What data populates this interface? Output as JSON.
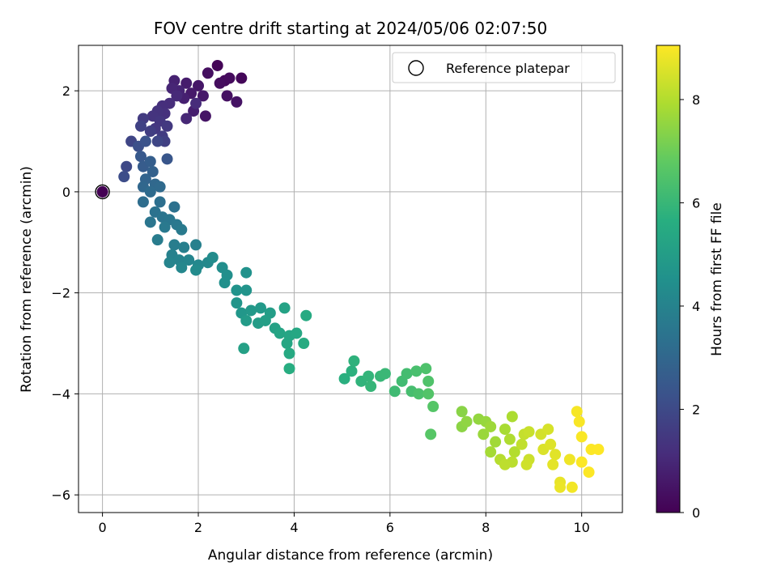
{
  "chart_data": {
    "type": "scatter",
    "title": "FOV centre drift starting at 2024/05/06 02:07:50",
    "xlabel": "Angular distance from reference (arcmin)",
    "ylabel": "Rotation from reference (arcmin)",
    "xlim": [
      -0.5,
      10.85
    ],
    "ylim": [
      -6.35,
      2.9
    ],
    "xticks": [
      "0",
      "2",
      "4",
      "6",
      "8",
      "10"
    ],
    "yticks": [
      "2",
      "0",
      "−2",
      "−4",
      "−6"
    ],
    "grid": true,
    "legend": {
      "placement": "top-right",
      "label": "Reference platepar"
    },
    "reference": {
      "x": 0,
      "y": 0
    },
    "colorbar": {
      "label": "Hours from first FF file",
      "range": [
        0,
        9.05
      ],
      "ticks": [
        "0",
        "2",
        "4",
        "6",
        "8"
      ],
      "colormap": "viridis"
    },
    "series": [
      {
        "points": [
          {
            "x": 2.4,
            "y": 2.5,
            "h": 0.1
          },
          {
            "x": 2.9,
            "y": 2.25,
            "h": 0.15
          },
          {
            "x": 2.55,
            "y": 2.2,
            "h": 0.2
          },
          {
            "x": 2.65,
            "y": 2.25,
            "h": 0.25
          },
          {
            "x": 2.45,
            "y": 2.15,
            "h": 0.3
          },
          {
            "x": 2.2,
            "y": 2.35,
            "h": 0.35
          },
          {
            "x": 2.6,
            "y": 1.9,
            "h": 0.4
          },
          {
            "x": 2.8,
            "y": 1.78,
            "h": 0.45
          },
          {
            "x": 2.15,
            "y": 1.5,
            "h": 0.5
          },
          {
            "x": 2.0,
            "y": 2.1,
            "h": 0.55
          },
          {
            "x": 2.1,
            "y": 1.9,
            "h": 0.6
          },
          {
            "x": 1.85,
            "y": 1.95,
            "h": 0.65
          },
          {
            "x": 1.75,
            "y": 2.15,
            "h": 0.7
          },
          {
            "x": 1.9,
            "y": 1.6,
            "h": 0.75
          },
          {
            "x": 1.7,
            "y": 1.85,
            "h": 0.8
          },
          {
            "x": 1.5,
            "y": 2.2,
            "h": 0.85
          },
          {
            "x": 1.6,
            "y": 2.0,
            "h": 0.9
          },
          {
            "x": 1.45,
            "y": 2.05,
            "h": 0.95
          },
          {
            "x": 1.75,
            "y": 1.45,
            "h": 1.0
          },
          {
            "x": 1.55,
            "y": 1.9,
            "h": 1.05
          },
          {
            "x": 1.95,
            "y": 1.75,
            "h": 1.1
          },
          {
            "x": 1.4,
            "y": 1.75,
            "h": 1.15
          },
          {
            "x": 1.25,
            "y": 1.7,
            "h": 1.2
          },
          {
            "x": 1.3,
            "y": 1.55,
            "h": 1.25
          },
          {
            "x": 1.15,
            "y": 1.6,
            "h": 1.3
          },
          {
            "x": 1.05,
            "y": 1.5,
            "h": 1.35
          },
          {
            "x": 1.2,
            "y": 1.4,
            "h": 1.4
          },
          {
            "x": 1.1,
            "y": 1.25,
            "h": 1.45
          },
          {
            "x": 1.35,
            "y": 1.3,
            "h": 1.5
          },
          {
            "x": 0.85,
            "y": 1.45,
            "h": 1.55
          },
          {
            "x": 1.25,
            "y": 1.1,
            "h": 1.6
          },
          {
            "x": 1.0,
            "y": 1.2,
            "h": 1.65
          },
          {
            "x": 1.3,
            "y": 1.0,
            "h": 1.7
          },
          {
            "x": 0.8,
            "y": 1.3,
            "h": 1.75
          },
          {
            "x": 0.6,
            "y": 1.0,
            "h": 1.85
          },
          {
            "x": 1.15,
            "y": 1.0,
            "h": 1.9
          },
          {
            "x": 0.5,
            "y": 0.5,
            "h": 2.0
          },
          {
            "x": 0.45,
            "y": 0.3,
            "h": 2.1
          },
          {
            "x": 0.75,
            "y": 0.9,
            "h": 2.2
          },
          {
            "x": 0.9,
            "y": 1.0,
            "h": 2.3
          },
          {
            "x": 1.35,
            "y": 0.65,
            "h": 2.4
          },
          {
            "x": 0.8,
            "y": 0.7,
            "h": 2.5
          },
          {
            "x": 0.85,
            "y": 0.5,
            "h": 2.6
          },
          {
            "x": 1.0,
            "y": 0.6,
            "h": 2.7
          },
          {
            "x": 1.05,
            "y": 0.4,
            "h": 2.8
          },
          {
            "x": 0.9,
            "y": 0.25,
            "h": 2.9
          },
          {
            "x": 0.85,
            "y": 0.1,
            "h": 3.0
          },
          {
            "x": 1.1,
            "y": 0.15,
            "h": 3.05
          },
          {
            "x": 1.2,
            "y": 0.1,
            "h": 3.1
          },
          {
            "x": 1.0,
            "y": 0.0,
            "h": 3.15
          },
          {
            "x": 0.85,
            "y": -0.2,
            "h": 3.2
          },
          {
            "x": 1.2,
            "y": -0.2,
            "h": 3.3
          },
          {
            "x": 1.5,
            "y": -0.3,
            "h": 3.35
          },
          {
            "x": 1.1,
            "y": -0.4,
            "h": 3.4
          },
          {
            "x": 1.25,
            "y": -0.5,
            "h": 3.45
          },
          {
            "x": 1.0,
            "y": -0.6,
            "h": 3.5
          },
          {
            "x": 1.4,
            "y": -0.55,
            "h": 3.55
          },
          {
            "x": 1.55,
            "y": -0.65,
            "h": 3.6
          },
          {
            "x": 1.3,
            "y": -0.7,
            "h": 3.65
          },
          {
            "x": 1.65,
            "y": -0.75,
            "h": 3.7
          },
          {
            "x": 1.15,
            "y": -0.95,
            "h": 3.75
          },
          {
            "x": 1.5,
            "y": -1.05,
            "h": 3.8
          },
          {
            "x": 1.7,
            "y": -1.1,
            "h": 3.85
          },
          {
            "x": 1.95,
            "y": -1.05,
            "h": 3.9
          },
          {
            "x": 1.45,
            "y": -1.25,
            "h": 3.95
          },
          {
            "x": 1.6,
            "y": -1.35,
            "h": 4.0
          },
          {
            "x": 1.4,
            "y": -1.4,
            "h": 4.05
          },
          {
            "x": 1.8,
            "y": -1.35,
            "h": 4.1
          },
          {
            "x": 1.65,
            "y": -1.5,
            "h": 4.15
          },
          {
            "x": 2.0,
            "y": -1.45,
            "h": 4.2
          },
          {
            "x": 2.2,
            "y": -1.4,
            "h": 4.25
          },
          {
            "x": 1.95,
            "y": -1.55,
            "h": 4.3
          },
          {
            "x": 2.3,
            "y": -1.3,
            "h": 4.35
          },
          {
            "x": 2.5,
            "y": -1.5,
            "h": 4.4
          },
          {
            "x": 2.6,
            "y": -1.65,
            "h": 4.45
          },
          {
            "x": 2.55,
            "y": -1.8,
            "h": 4.5
          },
          {
            "x": 3.0,
            "y": -1.6,
            "h": 4.55
          },
          {
            "x": 2.8,
            "y": -1.95,
            "h": 4.6
          },
          {
            "x": 3.0,
            "y": -1.95,
            "h": 4.65
          },
          {
            "x": 2.8,
            "y": -2.2,
            "h": 4.7
          },
          {
            "x": 2.9,
            "y": -2.4,
            "h": 4.75
          },
          {
            "x": 3.1,
            "y": -2.35,
            "h": 4.8
          },
          {
            "x": 3.3,
            "y": -2.3,
            "h": 4.85
          },
          {
            "x": 3.0,
            "y": -2.55,
            "h": 4.9
          },
          {
            "x": 3.25,
            "y": -2.6,
            "h": 4.95
          },
          {
            "x": 3.5,
            "y": -2.4,
            "h": 5.0
          },
          {
            "x": 3.4,
            "y": -2.55,
            "h": 5.05
          },
          {
            "x": 2.95,
            "y": -3.1,
            "h": 5.1
          },
          {
            "x": 3.6,
            "y": -2.7,
            "h": 5.15
          },
          {
            "x": 3.8,
            "y": -2.3,
            "h": 5.2
          },
          {
            "x": 3.7,
            "y": -2.8,
            "h": 5.25
          },
          {
            "x": 3.9,
            "y": -2.85,
            "h": 5.3
          },
          {
            "x": 3.85,
            "y": -3.0,
            "h": 5.35
          },
          {
            "x": 4.05,
            "y": -2.8,
            "h": 5.4
          },
          {
            "x": 3.9,
            "y": -3.2,
            "h": 5.45
          },
          {
            "x": 4.25,
            "y": -2.45,
            "h": 5.5
          },
          {
            "x": 4.2,
            "y": -3.0,
            "h": 5.55
          },
          {
            "x": 3.9,
            "y": -3.5,
            "h": 5.6
          },
          {
            "x": 5.05,
            "y": -3.7,
            "h": 5.7
          },
          {
            "x": 5.2,
            "y": -3.55,
            "h": 5.75
          },
          {
            "x": 5.25,
            "y": -3.35,
            "h": 5.8
          },
          {
            "x": 5.4,
            "y": -3.75,
            "h": 5.85
          },
          {
            "x": 5.55,
            "y": -3.65,
            "h": 5.9
          },
          {
            "x": 5.6,
            "y": -3.85,
            "h": 5.95
          },
          {
            "x": 5.8,
            "y": -3.65,
            "h": 6.0
          },
          {
            "x": 5.9,
            "y": -3.6,
            "h": 6.05
          },
          {
            "x": 6.1,
            "y": -3.95,
            "h": 6.15
          },
          {
            "x": 6.25,
            "y": -3.75,
            "h": 6.2
          },
          {
            "x": 6.35,
            "y": -3.6,
            "h": 6.25
          },
          {
            "x": 6.45,
            "y": -3.95,
            "h": 6.3
          },
          {
            "x": 6.55,
            "y": -3.55,
            "h": 6.35
          },
          {
            "x": 6.6,
            "y": -4.0,
            "h": 6.4
          },
          {
            "x": 6.75,
            "y": -3.5,
            "h": 6.45
          },
          {
            "x": 6.8,
            "y": -3.75,
            "h": 6.5
          },
          {
            "x": 6.8,
            "y": -4.0,
            "h": 6.55
          },
          {
            "x": 6.9,
            "y": -4.25,
            "h": 6.6
          },
          {
            "x": 6.85,
            "y": -4.8,
            "h": 6.65
          },
          {
            "x": 7.5,
            "y": -4.35,
            "h": 7.4
          },
          {
            "x": 7.5,
            "y": -4.65,
            "h": 7.45
          },
          {
            "x": 7.6,
            "y": -4.55,
            "h": 7.5
          },
          {
            "x": 7.85,
            "y": -4.5,
            "h": 7.55
          },
          {
            "x": 8.0,
            "y": -4.55,
            "h": 7.6
          },
          {
            "x": 7.95,
            "y": -4.8,
            "h": 7.65
          },
          {
            "x": 8.1,
            "y": -4.65,
            "h": 7.7
          },
          {
            "x": 8.2,
            "y": -4.95,
            "h": 7.75
          },
          {
            "x": 8.1,
            "y": -5.15,
            "h": 7.8
          },
          {
            "x": 8.4,
            "y": -4.7,
            "h": 7.85
          },
          {
            "x": 8.55,
            "y": -4.45,
            "h": 7.9
          },
          {
            "x": 8.5,
            "y": -4.9,
            "h": 7.95
          },
          {
            "x": 8.6,
            "y": -5.15,
            "h": 8.0
          },
          {
            "x": 8.3,
            "y": -5.3,
            "h": 8.05
          },
          {
            "x": 8.55,
            "y": -5.35,
            "h": 8.1
          },
          {
            "x": 8.4,
            "y": -5.4,
            "h": 8.15
          },
          {
            "x": 8.75,
            "y": -5.0,
            "h": 8.2
          },
          {
            "x": 8.8,
            "y": -4.8,
            "h": 8.25
          },
          {
            "x": 8.9,
            "y": -4.75,
            "h": 8.3
          },
          {
            "x": 8.9,
            "y": -5.3,
            "h": 8.35
          },
          {
            "x": 8.85,
            "y": -5.4,
            "h": 8.4
          },
          {
            "x": 9.15,
            "y": -4.8,
            "h": 8.45
          },
          {
            "x": 9.3,
            "y": -4.7,
            "h": 8.5
          },
          {
            "x": 9.2,
            "y": -5.1,
            "h": 8.55
          },
          {
            "x": 9.35,
            "y": -5.0,
            "h": 8.6
          },
          {
            "x": 9.45,
            "y": -5.2,
            "h": 8.65
          },
          {
            "x": 9.4,
            "y": -5.4,
            "h": 8.7
          },
          {
            "x": 9.55,
            "y": -5.75,
            "h": 8.75
          },
          {
            "x": 9.55,
            "y": -5.85,
            "h": 8.8
          },
          {
            "x": 9.75,
            "y": -5.3,
            "h": 8.85
          },
          {
            "x": 9.8,
            "y": -5.85,
            "h": 8.9
          },
          {
            "x": 9.9,
            "y": -4.35,
            "h": 8.95
          },
          {
            "x": 9.95,
            "y": -4.55,
            "h": 8.98
          },
          {
            "x": 10.0,
            "y": -4.85,
            "h": 9.0
          },
          {
            "x": 10.0,
            "y": -5.35,
            "h": 9.02
          },
          {
            "x": 10.15,
            "y": -5.55,
            "h": 9.03
          },
          {
            "x": 10.2,
            "y": -5.1,
            "h": 9.04
          },
          {
            "x": 10.35,
            "y": -5.1,
            "h": 9.05
          },
          {
            "x": 0.0,
            "y": 0.0,
            "h": 0.0
          }
        ]
      }
    ]
  }
}
